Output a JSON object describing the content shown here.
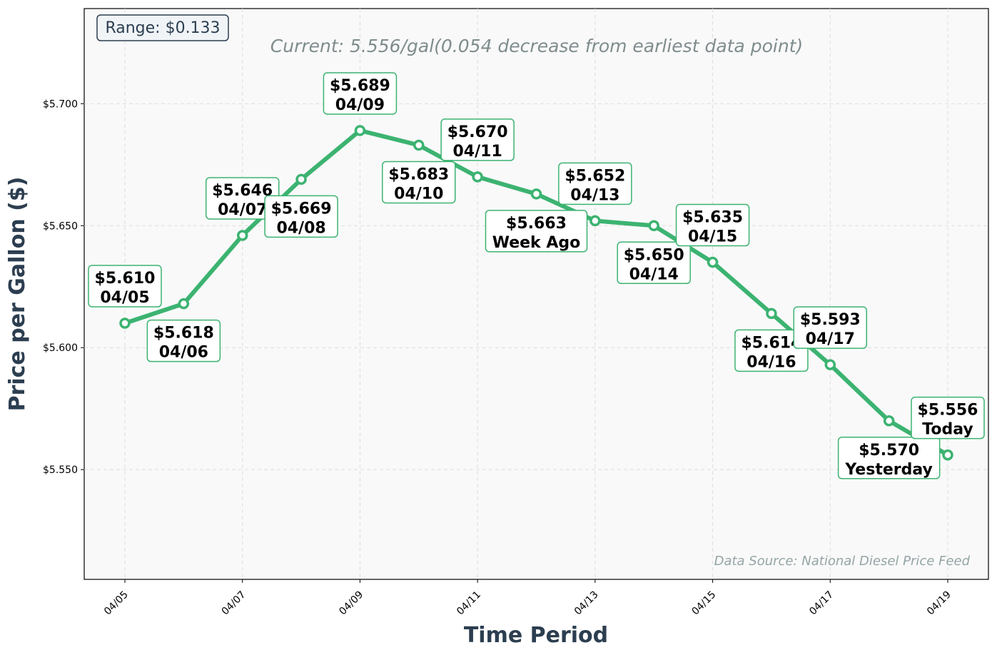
{
  "chart_data": {
    "type": "line",
    "xlabel": "Time Period",
    "ylabel": "Price per Gallon ($)",
    "subtitle": "Current: 5.556/gal(0.054 decrease from earliest data point)",
    "range_label": "Range: $0.133",
    "source_note": "Data Source: National Diesel Price Feed",
    "ylim": [
      5.505,
      5.739
    ],
    "yticks": [
      5.55,
      5.6,
      5.65,
      5.7
    ],
    "ytick_labels": [
      "$5.550",
      "$5.600",
      "$5.650",
      "$5.700"
    ],
    "xtick_labels": [
      "04/05",
      "04/07",
      "04/09",
      "04/11",
      "04/13",
      "04/15",
      "04/17",
      "04/19"
    ],
    "grid": true,
    "line_color": "#3cb371",
    "series": [
      {
        "x": [
          "04/05",
          "04/06",
          "04/07",
          "04/08",
          "04/09",
          "04/10",
          "04/11",
          "04/12",
          "04/13",
          "04/14",
          "04/15",
          "04/16",
          "04/17",
          "04/18",
          "04/19"
        ],
        "values": [
          5.61,
          5.618,
          5.646,
          5.669,
          5.689,
          5.683,
          5.67,
          5.663,
          5.652,
          5.65,
          5.635,
          5.614,
          5.593,
          5.57,
          5.556
        ]
      }
    ],
    "annotations": [
      {
        "price": "$5.610",
        "tag": "04/05",
        "pos": "above"
      },
      {
        "price": "$5.618",
        "tag": "04/06",
        "pos": "below"
      },
      {
        "price": "$5.646",
        "tag": "04/07",
        "pos": "above"
      },
      {
        "price": "$5.669",
        "tag": "04/08",
        "pos": "below"
      },
      {
        "price": "$5.689",
        "tag": "04/09",
        "pos": "above"
      },
      {
        "price": "$5.683",
        "tag": "04/10",
        "pos": "below"
      },
      {
        "price": "$5.670",
        "tag": "04/11",
        "pos": "above"
      },
      {
        "price": "$5.663",
        "tag": "Week Ago",
        "pos": "below"
      },
      {
        "price": "$5.652",
        "tag": "04/13",
        "pos": "above"
      },
      {
        "price": "$5.650",
        "tag": "04/14",
        "pos": "below"
      },
      {
        "price": "$5.635",
        "tag": "04/15",
        "pos": "above"
      },
      {
        "price": "$5.614",
        "tag": "04/16",
        "pos": "below"
      },
      {
        "price": "$5.593",
        "tag": "04/17",
        "pos": "above"
      },
      {
        "price": "$5.570",
        "tag": "Yesterday",
        "pos": "below"
      },
      {
        "price": "$5.556",
        "tag": "Today",
        "pos": "above"
      }
    ]
  }
}
